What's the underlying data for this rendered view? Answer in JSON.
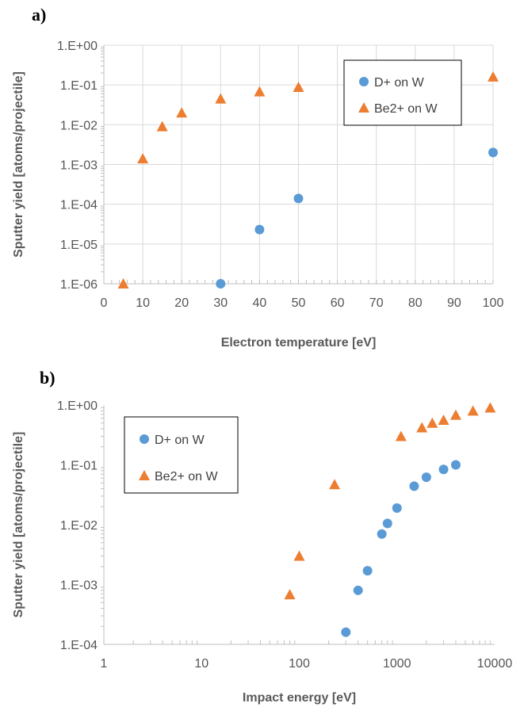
{
  "chart_data": [
    {
      "panel_label": "a)",
      "type": "scatter",
      "xlabel": "Electron temperature [eV]",
      "ylabel": "Sputter yield [atoms/projectile]",
      "xlim": [
        0,
        100
      ],
      "x_ticks": [
        0,
        10,
        20,
        30,
        40,
        50,
        60,
        70,
        80,
        90,
        100
      ],
      "x_tick_labels": [
        "0",
        "10",
        "20",
        "30",
        "40",
        "50",
        "60",
        "70",
        "80",
        "90",
        "100"
      ],
      "y_scale": "log",
      "ylim": [
        1e-06,
        1
      ],
      "y_ticks": [
        1e-06,
        1e-05,
        0.0001,
        0.001,
        0.01,
        0.1,
        1
      ],
      "y_tick_labels": [
        "1.E-06",
        "1.E-05",
        "1.E-04",
        "1.E-03",
        "1.E-02",
        "1.E-01",
        "1.E+00"
      ],
      "grid": true,
      "legend_position": "top-right",
      "series": [
        {
          "name": "D+ on W",
          "marker": "circle",
          "color": "#5B9BD5",
          "x": [
            30,
            40,
            50,
            100
          ],
          "y": [
            1e-06,
            2.3e-05,
            0.00014,
            0.002
          ]
        },
        {
          "name": "Be2+ on W",
          "marker": "triangle",
          "color": "#ED7D31",
          "x": [
            5,
            10,
            15,
            20,
            30,
            40,
            50,
            100
          ],
          "y": [
            1e-06,
            0.0014,
            0.009,
            0.02,
            0.045,
            0.068,
            0.088,
            0.16
          ]
        }
      ]
    },
    {
      "panel_label": "b)",
      "type": "scatter",
      "xlabel": "Impact energy [eV]",
      "ylabel": "Sputter yield [atoms/projectile]",
      "x_scale": "log",
      "xlim": [
        1,
        10000
      ],
      "x_ticks": [
        1,
        10,
        100,
        1000,
        10000
      ],
      "x_tick_labels": [
        "1",
        "10",
        "100",
        "1000",
        "10000"
      ],
      "y_scale": "log",
      "ylim": [
        0.0001,
        1
      ],
      "y_ticks": [
        0.0001,
        0.001,
        0.01,
        0.1,
        1
      ],
      "y_tick_labels": [
        "1.E-04",
        "1.E-03",
        "1.E-02",
        "1.E-01",
        "1.E+00"
      ],
      "grid": false,
      "legend_position": "top-left",
      "series": [
        {
          "name": "D+ on W",
          "marker": "circle",
          "color": "#5B9BD5",
          "x": [
            300,
            400,
            500,
            700,
            800,
            1000,
            1500,
            2000,
            3000,
            4000
          ],
          "y": [
            0.00016,
            0.0008,
            0.0017,
            0.007,
            0.0105,
            0.019,
            0.044,
            0.062,
            0.084,
            0.1
          ]
        },
        {
          "name": "Be2+ on W",
          "marker": "triangle",
          "color": "#ED7D31",
          "x": [
            80,
            100,
            230,
            1100,
            1800,
            2300,
            3000,
            4000,
            6000,
            9000
          ],
          "y": [
            0.00068,
            0.003,
            0.047,
            0.3,
            0.42,
            0.5,
            0.56,
            0.68,
            0.8,
            0.9
          ]
        }
      ]
    }
  ]
}
